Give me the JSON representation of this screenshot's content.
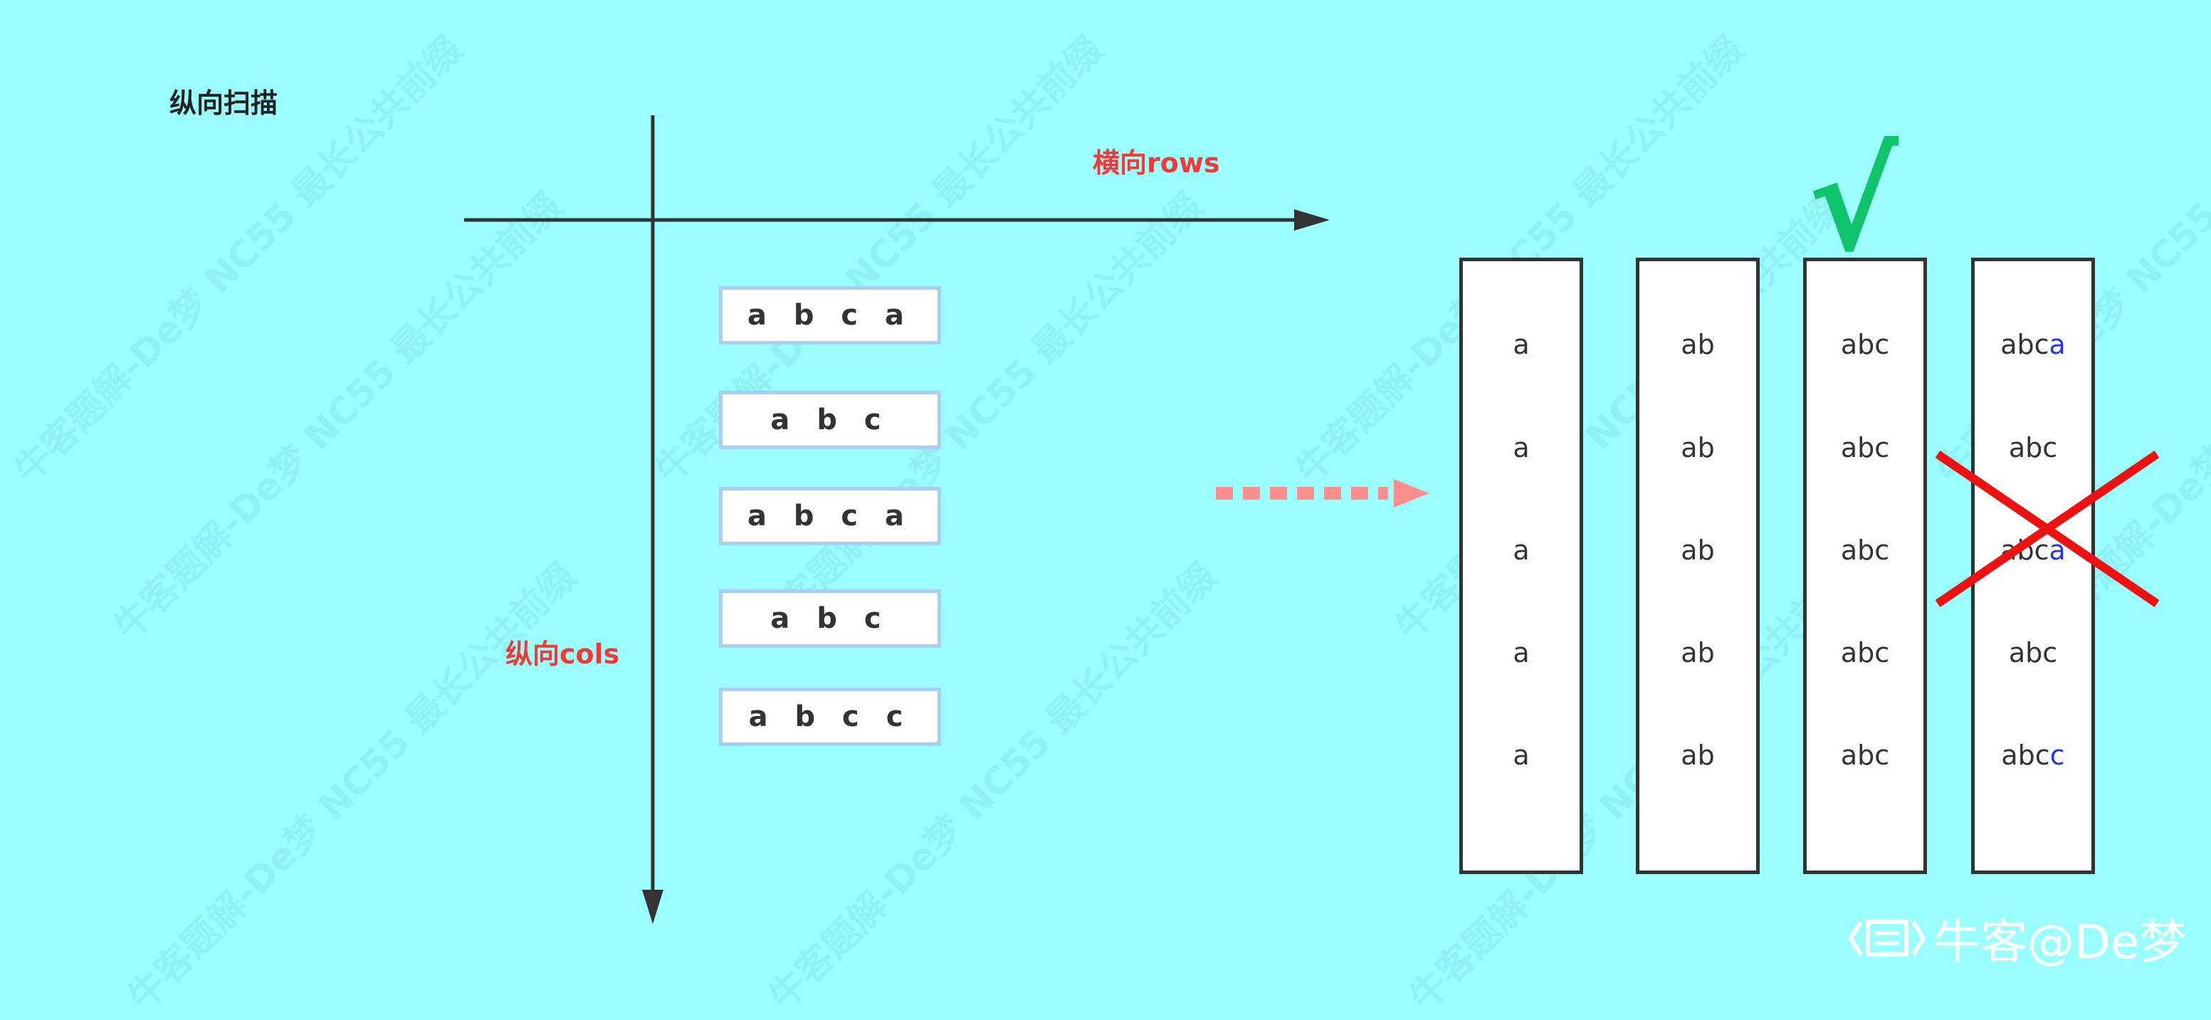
{
  "title": "纵向扫描",
  "rows_label": "横向rows",
  "cols_label": "纵向cols",
  "strings": [
    "a b c a",
    "a b c",
    "a b c a",
    "a b c",
    "a b c c"
  ],
  "columns": [
    {
      "cells": [
        {
          "text": "a",
          "highlight": ""
        },
        {
          "text": "a",
          "highlight": ""
        },
        {
          "text": "a",
          "highlight": ""
        },
        {
          "text": "a",
          "highlight": ""
        },
        {
          "text": "a",
          "highlight": ""
        }
      ]
    },
    {
      "cells": [
        {
          "text": "ab",
          "highlight": ""
        },
        {
          "text": "ab",
          "highlight": ""
        },
        {
          "text": "ab",
          "highlight": ""
        },
        {
          "text": "ab",
          "highlight": ""
        },
        {
          "text": "ab",
          "highlight": ""
        }
      ]
    },
    {
      "cells": [
        {
          "text": "abc",
          "highlight": ""
        },
        {
          "text": "abc",
          "highlight": ""
        },
        {
          "text": "abc",
          "highlight": ""
        },
        {
          "text": "abc",
          "highlight": ""
        },
        {
          "text": "abc",
          "highlight": ""
        }
      ]
    },
    {
      "cells": [
        {
          "text": "abc",
          "highlight": "a"
        },
        {
          "text": "abc",
          "highlight": ""
        },
        {
          "text": "abc",
          "highlight": "a"
        },
        {
          "text": "abc",
          "highlight": ""
        },
        {
          "text": "abc",
          "highlight": "c"
        }
      ]
    }
  ],
  "check_mark": "√",
  "watermark": "牛客题解-De梦  NC55 最长公共前缀",
  "footer": {
    "text": "牛客@De梦",
    "icon": "niuke-logo-icon"
  },
  "colors": {
    "background": "#9bffff",
    "axis": "#333333",
    "label_red": "#f03a3a",
    "check_green": "#0fc36a",
    "cross_red": "#ee1111",
    "highlight_blue": "#2233ee",
    "dashed_arrow": "#ff8f8f"
  }
}
